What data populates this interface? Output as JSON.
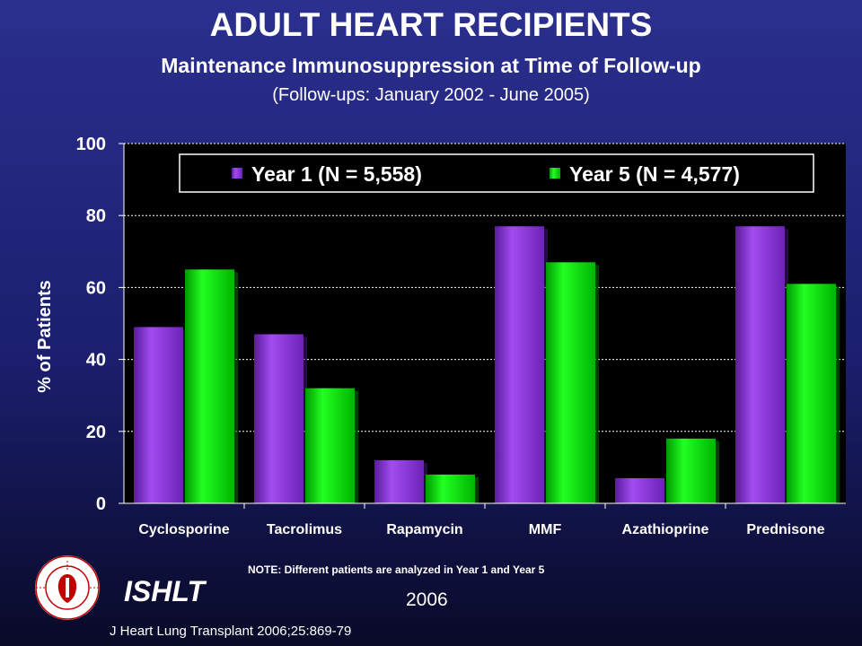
{
  "slide": {
    "title": "ADULT HEART RECIPIENTS",
    "subtitle": "Maintenance Immunosuppression at Time of Follow-up",
    "period": "(Follow-ups: January 2002  -  June 2005)",
    "note": "NOTE: Different patients are analyzed in Year 1 and Year 5",
    "org": "ISHLT",
    "year": "2006",
    "citation": "J Heart Lung Transplant 2006;25:869-79",
    "logo_icon": "ishlt-society-seal-icon"
  },
  "chart_data": {
    "type": "bar",
    "ylabel": "% of Patients",
    "ylim": [
      0,
      100
    ],
    "yticks": [
      0,
      20,
      40,
      60,
      80,
      100
    ],
    "grid": true,
    "legend_position": "top",
    "categories": [
      "Cyclosporine",
      "Tacrolimus",
      "Rapamycin",
      "MMF",
      "Azathioprine",
      "Prednisone"
    ],
    "series": [
      {
        "name": "Year 1 (N = 5,558)",
        "color": "#8a2be2",
        "values": [
          49,
          47,
          12,
          77,
          7,
          77
        ]
      },
      {
        "name": "Year 5 (N = 4,577)",
        "color": "#00e000",
        "values": [
          65,
          32,
          8,
          67,
          18,
          61
        ]
      }
    ]
  }
}
